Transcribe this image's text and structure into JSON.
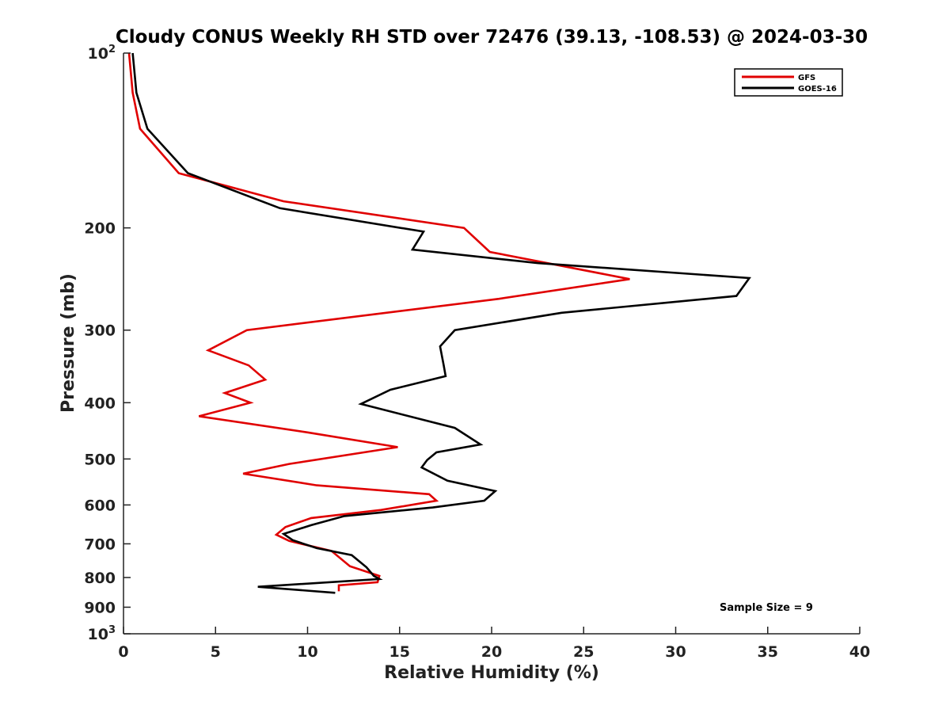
{
  "chart_data": {
    "type": "line",
    "title": "Cloudy CONUS Weekly RH STD over 72476 (39.13, -108.53) @ 2024-03-30",
    "xlabel": "Relative Humidity (%)",
    "ylabel": "Pressure (mb)",
    "xlim": [
      0,
      40
    ],
    "ylim": [
      100,
      1000
    ],
    "y_scale": "log",
    "y_reversed": true,
    "x_ticks": [
      "0",
      "5",
      "10",
      "15",
      "20",
      "25",
      "30",
      "35",
      "40"
    ],
    "y_ticks": [
      {
        "value": 100,
        "base": "10",
        "exp": "2"
      },
      {
        "value": 200,
        "label": "200"
      },
      {
        "value": 300,
        "label": "300"
      },
      {
        "value": 400,
        "label": "400"
      },
      {
        "value": 500,
        "label": "500"
      },
      {
        "value": 600,
        "label": "600"
      },
      {
        "value": 700,
        "label": "700"
      },
      {
        "value": 800,
        "label": "800"
      },
      {
        "value": 900,
        "label": "900"
      },
      {
        "value": 1000,
        "base": "10",
        "exp": "3"
      }
    ],
    "legend_position": "top-right",
    "grid": false,
    "annotation": "Sample Size = 9",
    "series": [
      {
        "name": "GFS",
        "color": "#e00000",
        "points": [
          [
            0.3,
            100
          ],
          [
            0.5,
            117
          ],
          [
            0.9,
            135
          ],
          [
            3.0,
            161
          ],
          [
            8.7,
            180
          ],
          [
            18.5,
            200
          ],
          [
            19.9,
            220
          ],
          [
            27.5,
            245
          ],
          [
            20.4,
            265
          ],
          [
            6.7,
            300
          ],
          [
            4.6,
            325
          ],
          [
            6.8,
            345
          ],
          [
            7.7,
            365
          ],
          [
            5.5,
            385
          ],
          [
            6.9,
            400
          ],
          [
            4.1,
            422
          ],
          [
            10.0,
            450
          ],
          [
            14.9,
            477
          ],
          [
            9.0,
            510
          ],
          [
            6.5,
            530
          ],
          [
            10.5,
            555
          ],
          [
            16.6,
            575
          ],
          [
            17.0,
            590
          ],
          [
            14.0,
            612
          ],
          [
            10.2,
            632
          ],
          [
            8.8,
            655
          ],
          [
            8.3,
            675
          ],
          [
            9.0,
            692
          ],
          [
            11.3,
            720
          ],
          [
            12.3,
            765
          ],
          [
            13.9,
            795
          ],
          [
            13.8,
            815
          ],
          [
            11.7,
            825
          ],
          [
            11.7,
            845
          ]
        ]
      },
      {
        "name": "GOES-16",
        "color": "#000000",
        "points": [
          [
            0.5,
            100
          ],
          [
            0.7,
            117
          ],
          [
            1.3,
            135
          ],
          [
            3.5,
            161
          ],
          [
            8.5,
            185
          ],
          [
            16.3,
            203
          ],
          [
            15.7,
            218
          ],
          [
            22.5,
            230
          ],
          [
            34.0,
            244
          ],
          [
            33.3,
            262
          ],
          [
            23.8,
            280
          ],
          [
            18.0,
            300
          ],
          [
            17.2,
            320
          ],
          [
            17.4,
            345
          ],
          [
            17.5,
            360
          ],
          [
            14.5,
            380
          ],
          [
            12.9,
            402
          ],
          [
            18.0,
            442
          ],
          [
            19.4,
            472
          ],
          [
            17.0,
            487
          ],
          [
            16.5,
            502
          ],
          [
            16.2,
            517
          ],
          [
            17.6,
            545
          ],
          [
            20.2,
            568
          ],
          [
            19.6,
            590
          ],
          [
            16.8,
            606
          ],
          [
            12.0,
            627
          ],
          [
            10.2,
            650
          ],
          [
            8.7,
            673
          ],
          [
            9.2,
            690
          ],
          [
            10.5,
            712
          ],
          [
            12.4,
            732
          ],
          [
            13.2,
            768
          ],
          [
            13.6,
            795
          ],
          [
            13.9,
            805
          ],
          [
            7.3,
            830
          ],
          [
            11.5,
            850
          ]
        ]
      }
    ]
  }
}
